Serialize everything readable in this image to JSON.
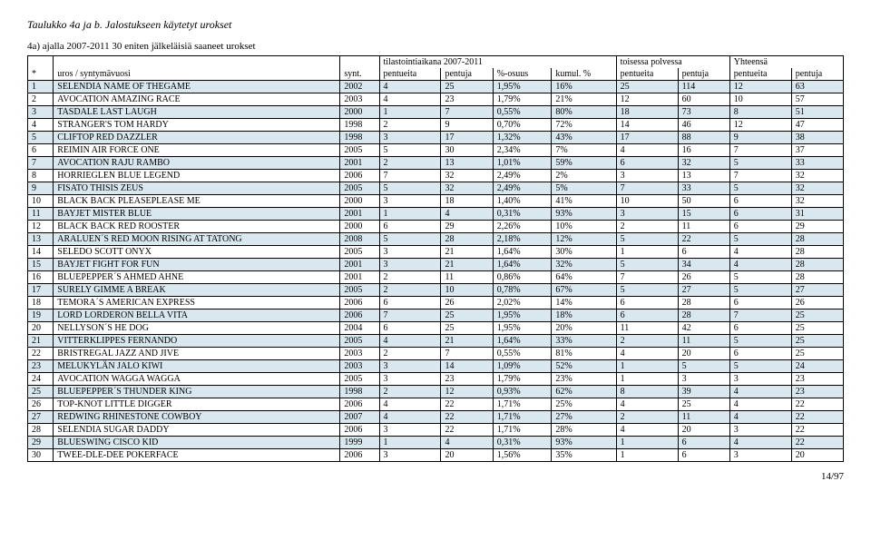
{
  "title_main": "Taulukko 4a ja b. Jalostukseen käytetyt urokset",
  "title_sub": "4a) ajalla 2007-2011 30 eniten jälkeläisiä saaneet urokset",
  "footer": "14/97",
  "header_groups": {
    "g1": "tilastointiaikana 2007-2011",
    "g2": "toisessa polvessa",
    "g3": "Yhteensä"
  },
  "columns": {
    "c0": "*",
    "c1": "uros / syntymävuosi",
    "c2": "synt.",
    "c3": "pentueita",
    "c4": "pentuja",
    "c5": "%-osuus",
    "c6": "kumul. %",
    "c7": "pentueita",
    "c8": "pentuja",
    "c9": "pentueita",
    "c10": "pentuja"
  },
  "rows": [
    [
      "1",
      "SELENDIA NAME OF THEGAME",
      "2002",
      "4",
      "25",
      "1,95%",
      "16%",
      "25",
      "114",
      "12",
      "63"
    ],
    [
      "2",
      "AVOCATION AMAZING RACE",
      "2003",
      "4",
      "23",
      "1,79%",
      "21%",
      "12",
      "60",
      "10",
      "57"
    ],
    [
      "3",
      "TASDALE LAST LAUGH",
      "2000",
      "1",
      "7",
      "0,55%",
      "80%",
      "18",
      "73",
      "8",
      "51"
    ],
    [
      "4",
      "STRANGER'S TOM HARDY",
      "1998",
      "2",
      "9",
      "0,70%",
      "72%",
      "14",
      "46",
      "12",
      "47"
    ],
    [
      "5",
      "CLIFTOP RED DAZZLER",
      "1998",
      "3",
      "17",
      "1,32%",
      "43%",
      "17",
      "88",
      "9",
      "38"
    ],
    [
      "6",
      "REIMIN AIR FORCE ONE",
      "2005",
      "5",
      "30",
      "2,34%",
      "7%",
      "4",
      "16",
      "7",
      "37"
    ],
    [
      "7",
      "AVOCATION RAJU RAMBO",
      "2001",
      "2",
      "13",
      "1,01%",
      "59%",
      "6",
      "32",
      "5",
      "33"
    ],
    [
      "8",
      "HORRIEGLEN BLUE LEGEND",
      "2006",
      "7",
      "32",
      "2,49%",
      "2%",
      "3",
      "13",
      "7",
      "32"
    ],
    [
      "9",
      "FISATO THISIS ZEUS",
      "2005",
      "5",
      "32",
      "2,49%",
      "5%",
      "7",
      "33",
      "5",
      "32"
    ],
    [
      "10",
      "BLACK BACK PLEASEPLEASE ME",
      "2000",
      "3",
      "18",
      "1,40%",
      "41%",
      "10",
      "50",
      "6",
      "32"
    ],
    [
      "11",
      "BAYJET MISTER BLUE",
      "2001",
      "1",
      "4",
      "0,31%",
      "93%",
      "3",
      "15",
      "6",
      "31"
    ],
    [
      "12",
      "BLACK BACK RED ROOSTER",
      "2000",
      "6",
      "29",
      "2,26%",
      "10%",
      "2",
      "11",
      "6",
      "29"
    ],
    [
      "13",
      "ARALUEN´S RED MOON RISING AT TATONG",
      "2008",
      "5",
      "28",
      "2,18%",
      "12%",
      "5",
      "22",
      "5",
      "28"
    ],
    [
      "14",
      "SELEDO SCOTT ONYX",
      "2005",
      "3",
      "21",
      "1,64%",
      "30%",
      "1",
      "6",
      "4",
      "28"
    ],
    [
      "15",
      "BAYJET FIGHT FOR FUN",
      "2001",
      "3",
      "21",
      "1,64%",
      "32%",
      "5",
      "34",
      "4",
      "28"
    ],
    [
      "16",
      "BLUEPEPPER´S AHMED AHNE",
      "2001",
      "2",
      "11",
      "0,86%",
      "64%",
      "7",
      "26",
      "5",
      "28"
    ],
    [
      "17",
      "SURELY GIMME A BREAK",
      "2005",
      "2",
      "10",
      "0,78%",
      "67%",
      "5",
      "27",
      "5",
      "27"
    ],
    [
      "18",
      "TEMORA´S AMERICAN EXPRESS",
      "2006",
      "6",
      "26",
      "2,02%",
      "14%",
      "6",
      "28",
      "6",
      "26"
    ],
    [
      "19",
      "LORD LORDERON BELLA VITA",
      "2006",
      "7",
      "25",
      "1,95%",
      "18%",
      "6",
      "28",
      "7",
      "25"
    ],
    [
      "20",
      "NELLYSON´S HE DOG",
      "2004",
      "6",
      "25",
      "1,95%",
      "20%",
      "11",
      "42",
      "6",
      "25"
    ],
    [
      "21",
      "VITTERKLIPPES FERNANDO",
      "2005",
      "4",
      "21",
      "1,64%",
      "33%",
      "2",
      "11",
      "5",
      "25"
    ],
    [
      "22",
      "BRISTREGAL JAZZ AND JIVE",
      "2003",
      "2",
      "7",
      "0,55%",
      "81%",
      "4",
      "20",
      "6",
      "25"
    ],
    [
      "23",
      "MELUKYLÄN JALO KIWI",
      "2003",
      "3",
      "14",
      "1,09%",
      "52%",
      "1",
      "5",
      "5",
      "24"
    ],
    [
      "24",
      "AVOCATION WAGGA WAGGA",
      "2005",
      "3",
      "23",
      "1,79%",
      "23%",
      "1",
      "3",
      "3",
      "23"
    ],
    [
      "25",
      "BLUEPEPPER´S THUNDER KING",
      "1998",
      "2",
      "12",
      "0,93%",
      "62%",
      "8",
      "39",
      "4",
      "23"
    ],
    [
      "26",
      "TOP-KNOT LITTLE DIGGER",
      "2006",
      "4",
      "22",
      "1,71%",
      "25%",
      "4",
      "25",
      "4",
      "22"
    ],
    [
      "27",
      "REDWING RHINESTONE COWBOY",
      "2007",
      "4",
      "22",
      "1,71%",
      "27%",
      "2",
      "11",
      "4",
      "22"
    ],
    [
      "28",
      "SELENDIA SUGAR DADDY",
      "2006",
      "3",
      "22",
      "1,71%",
      "28%",
      "4",
      "20",
      "3",
      "22"
    ],
    [
      "29",
      "BLUESWING CISCO KID",
      "1999",
      "1",
      "4",
      "0,31%",
      "93%",
      "1",
      "6",
      "4",
      "22"
    ],
    [
      "30",
      "TWEE-DLE-DEE POKERFACE",
      "2006",
      "3",
      "20",
      "1,56%",
      "35%",
      "1",
      "6",
      "3",
      "20"
    ]
  ],
  "styling": {
    "row_even_bg": "#d9e7ef",
    "row_odd_bg": "#ffffff",
    "border_color": "#000000",
    "font_family": "Times New Roman",
    "base_font_size": 10
  }
}
